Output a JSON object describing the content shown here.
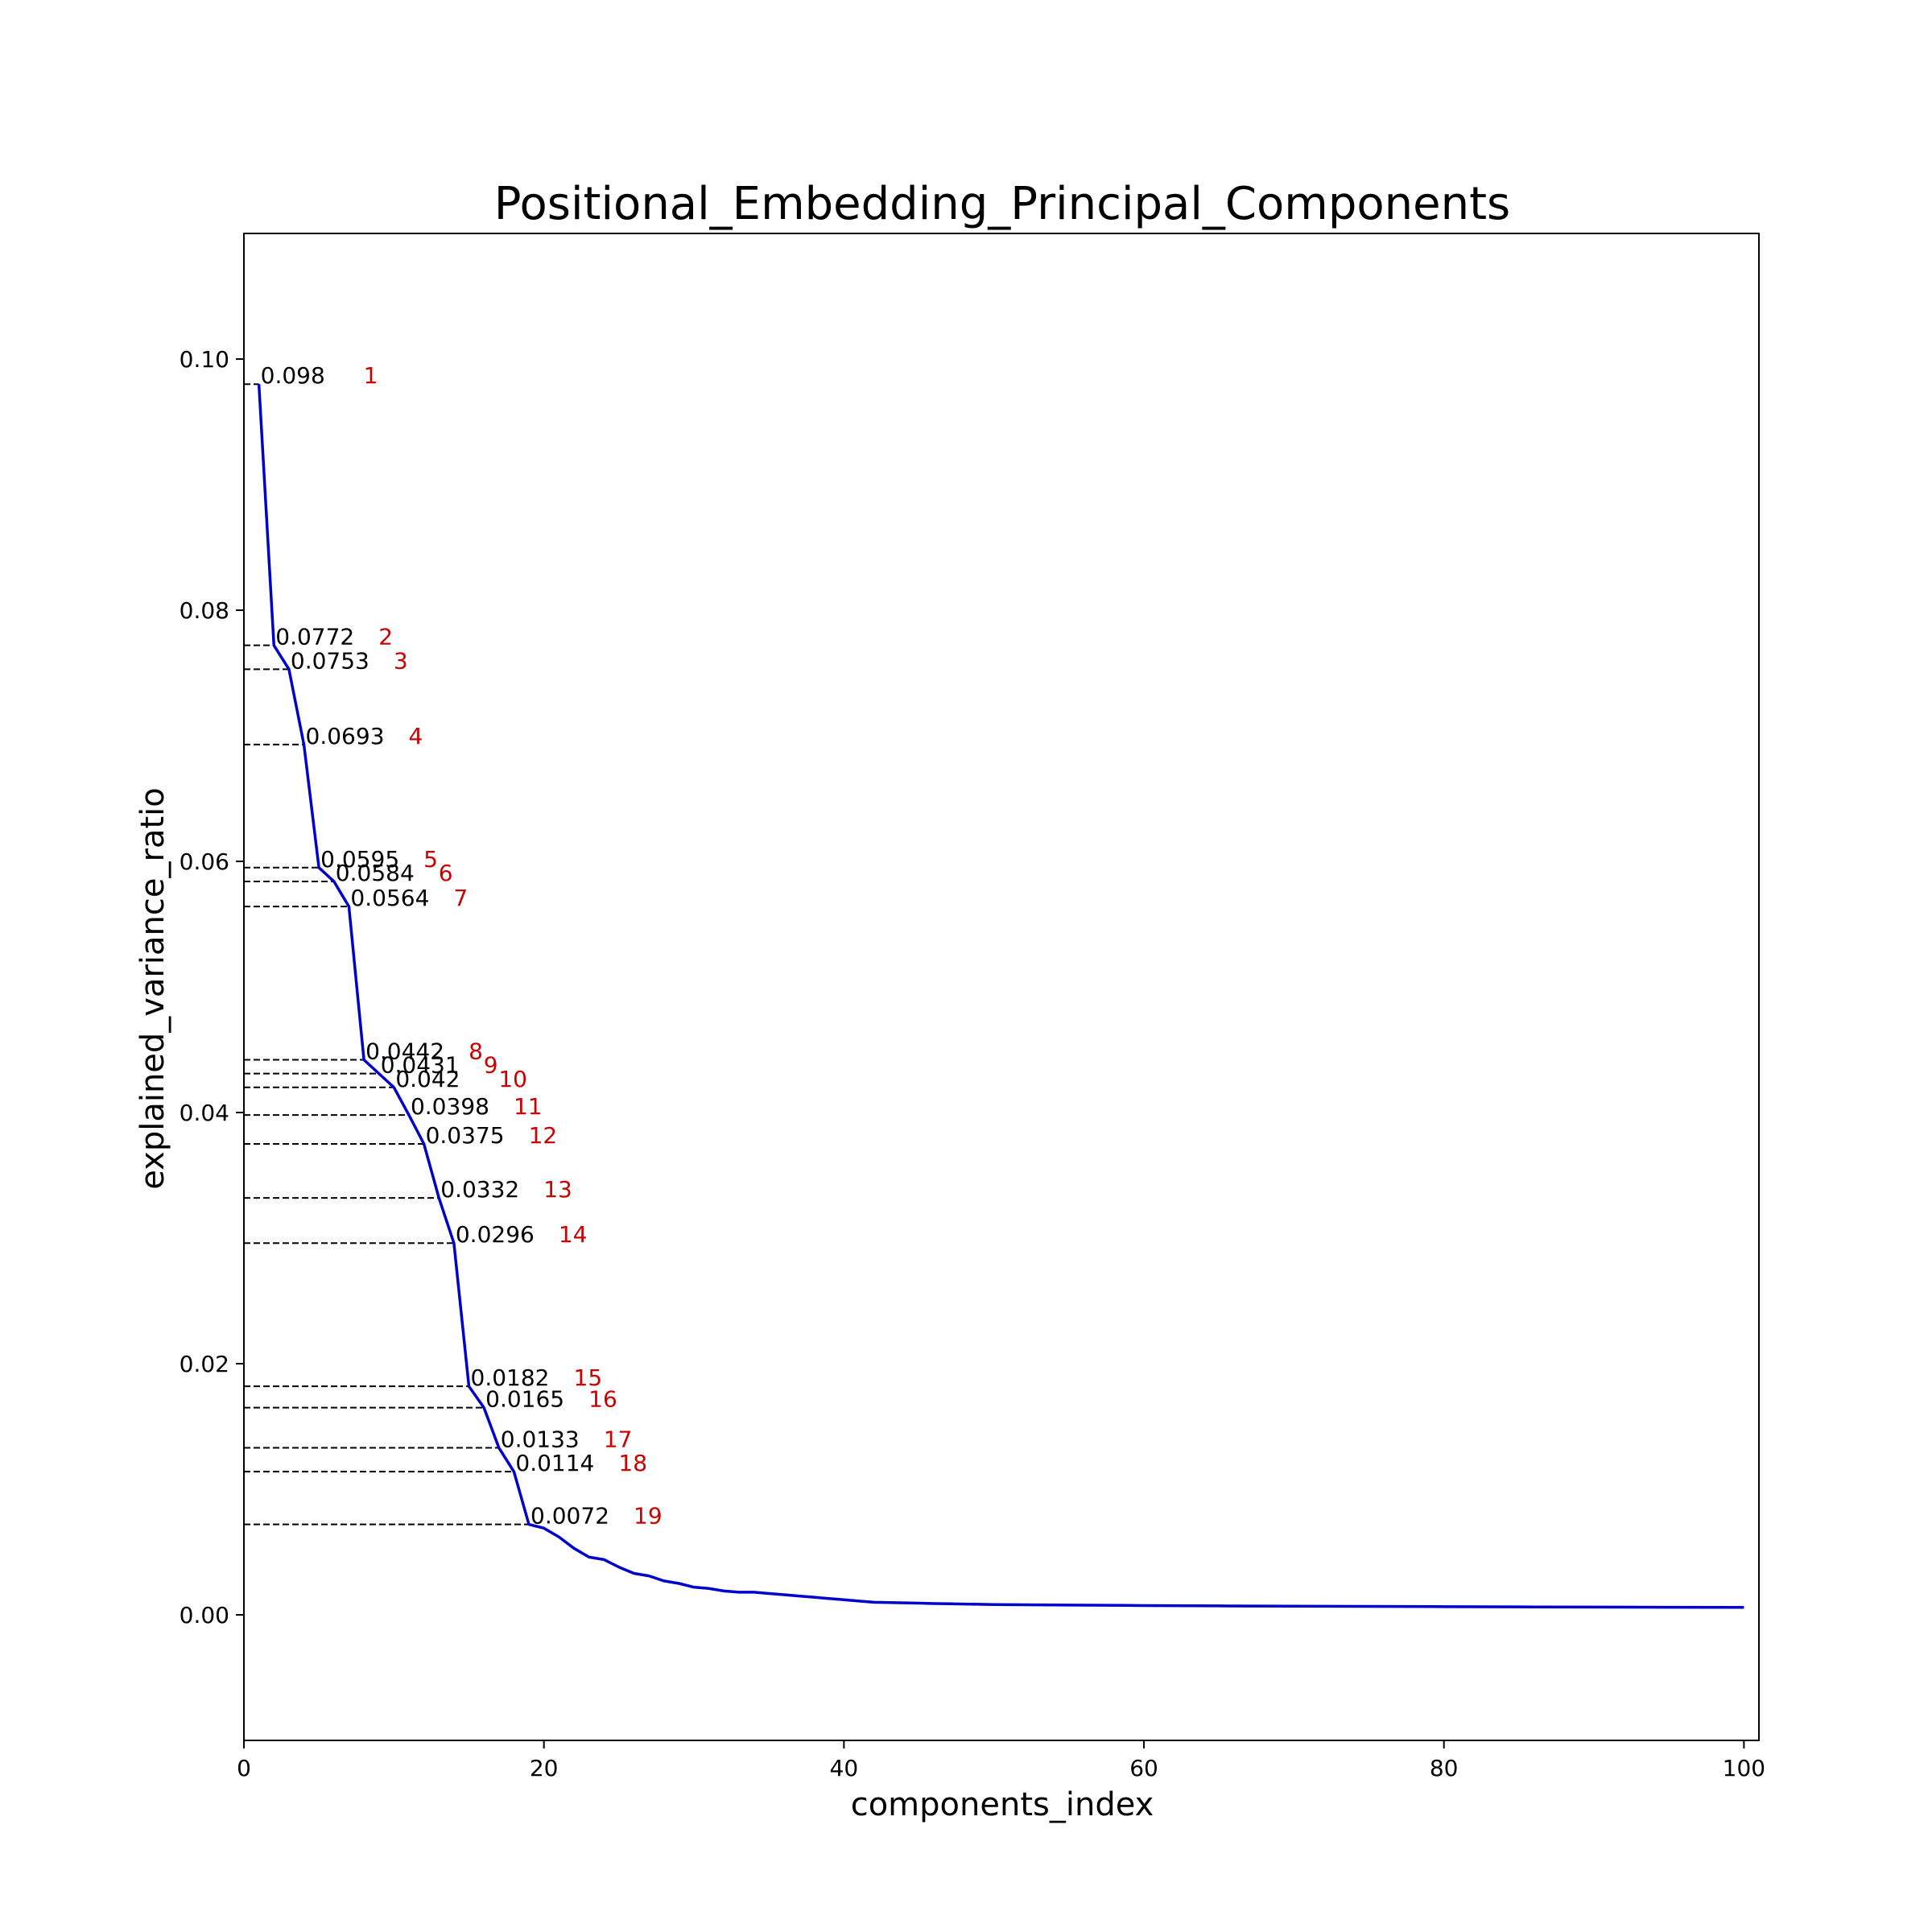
{
  "chart_data": {
    "type": "line",
    "title": "Positional_Embedding_Principal_Components",
    "xlabel": "components_index",
    "ylabel": "explained_variance_ratio",
    "xlim": [
      0,
      101
    ],
    "ylim": [
      -0.01,
      0.11
    ],
    "x_ticks": [
      0,
      20,
      40,
      60,
      80,
      100
    ],
    "x_tick_labels": [
      "0",
      "20",
      "40",
      "60",
      "80",
      "100"
    ],
    "y_ticks": [
      0.0,
      0.02,
      0.04,
      0.06,
      0.08,
      0.1
    ],
    "y_tick_labels": [
      "0.00",
      "0.02",
      "0.04",
      "0.06",
      "0.08",
      "0.10"
    ],
    "grid": false,
    "legend": "none",
    "colors": {
      "line": "#0000cc",
      "index_label": "#cc0000",
      "guide": "#000000"
    },
    "series": [
      {
        "x": [
          1,
          2,
          3,
          4,
          5,
          6,
          7,
          8,
          9,
          10,
          11,
          12,
          13,
          14,
          15,
          16,
          17,
          18,
          19,
          20,
          21,
          22,
          23,
          24,
          25,
          26,
          27,
          28,
          29,
          30,
          31,
          32,
          33,
          34,
          35,
          36,
          37,
          38,
          39,
          40,
          41,
          42,
          43,
          44,
          45,
          46,
          47,
          48,
          49,
          50,
          55,
          60,
          65,
          70,
          75,
          80,
          85,
          90,
          95,
          100
        ],
        "values": [
          0.098,
          0.0772,
          0.0753,
          0.0693,
          0.0595,
          0.0584,
          0.0564,
          0.0442,
          0.0431,
          0.042,
          0.0398,
          0.0375,
          0.0332,
          0.0296,
          0.0182,
          0.0165,
          0.0133,
          0.0114,
          0.0072,
          0.0069,
          0.0062,
          0.0053,
          0.0046,
          0.0044,
          0.0038,
          0.0033,
          0.0031,
          0.0027,
          0.0025,
          0.0022,
          0.0021,
          0.0019,
          0.0018,
          0.0018,
          0.0017,
          0.0016,
          0.0015,
          0.0014,
          0.0013,
          0.0012,
          0.0011,
          0.001,
          0.00098,
          0.00095,
          0.00093,
          0.0009,
          0.00088,
          0.00086,
          0.00084,
          0.00082,
          0.00078,
          0.00074,
          0.00071,
          0.00069,
          0.00067,
          0.00065,
          0.00063,
          0.00062,
          0.0006,
          0.00059
        ]
      }
    ],
    "annotations": [
      {
        "x": 1,
        "value": 0.098,
        "text": "0.098",
        "index": "1"
      },
      {
        "x": 2,
        "value": 0.0772,
        "text": "0.0772",
        "index": "2"
      },
      {
        "x": 3,
        "value": 0.0753,
        "text": "0.0753",
        "index": "3"
      },
      {
        "x": 4,
        "value": 0.0693,
        "text": "0.0693",
        "index": "4"
      },
      {
        "x": 5,
        "value": 0.0595,
        "text": "0.0595",
        "index": "5"
      },
      {
        "x": 6,
        "value": 0.0584,
        "text": "0.0584",
        "index": "6"
      },
      {
        "x": 7,
        "value": 0.0564,
        "text": "0.0564",
        "index": "7"
      },
      {
        "x": 8,
        "value": 0.0442,
        "text": "0.0442",
        "index": "8"
      },
      {
        "x": 9,
        "value": 0.0431,
        "text": "0.0431",
        "index": "9"
      },
      {
        "x": 10,
        "value": 0.042,
        "text": "0.042",
        "index": "10"
      },
      {
        "x": 11,
        "value": 0.0398,
        "text": "0.0398",
        "index": "11"
      },
      {
        "x": 12,
        "value": 0.0375,
        "text": "0.0375",
        "index": "12"
      },
      {
        "x": 13,
        "value": 0.0332,
        "text": "0.0332",
        "index": "13"
      },
      {
        "x": 14,
        "value": 0.0296,
        "text": "0.0296",
        "index": "14"
      },
      {
        "x": 15,
        "value": 0.0182,
        "text": "0.0182",
        "index": "15"
      },
      {
        "x": 16,
        "value": 0.0165,
        "text": "0.0165",
        "index": "16"
      },
      {
        "x": 17,
        "value": 0.0133,
        "text": "0.0133",
        "index": "17"
      },
      {
        "x": 18,
        "value": 0.0114,
        "text": "0.0114",
        "index": "18"
      },
      {
        "x": 19,
        "value": 0.0072,
        "text": "0.0072",
        "index": "19"
      }
    ]
  }
}
